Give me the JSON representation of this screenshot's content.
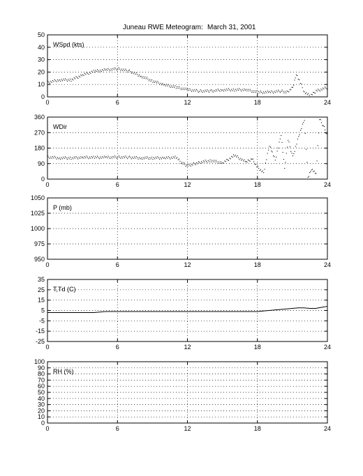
{
  "title": {
    "station": "Juneau RWE Meteogram:",
    "date": "March 31, 2001"
  },
  "chart_data": [
    {
      "type": "scatter",
      "label": "WSpd (kts)",
      "ylim": [
        0,
        50
      ],
      "yticks": [
        0,
        10,
        20,
        30,
        40,
        50
      ],
      "xlim": [
        0,
        24
      ],
      "xticks": [
        0,
        6,
        12,
        18,
        24
      ],
      "grid": true,
      "series": [
        {
          "x": [
            0,
            1,
            2,
            3,
            4,
            5,
            6,
            7,
            8,
            9,
            10,
            11,
            12,
            13,
            14,
            15,
            16,
            17,
            18,
            19,
            20,
            20.5,
            21,
            21.3,
            22,
            22.5,
            23,
            24
          ],
          "values": [
            12,
            14,
            14,
            18,
            21,
            22,
            23,
            21,
            17,
            13,
            10,
            8,
            6,
            5,
            5,
            6,
            6,
            6,
            4,
            4,
            5,
            4,
            8,
            19,
            4,
            1,
            5,
            8
          ]
        }
      ]
    },
    {
      "type": "scatter",
      "label": "WDir",
      "ylim": [
        0,
        360
      ],
      "yticks": [
        0,
        90,
        180,
        270,
        360
      ],
      "xlim": [
        0,
        24
      ],
      "xticks": [
        0,
        6,
        12,
        18,
        24
      ],
      "grid": true,
      "series": [
        {
          "x": [
            0,
            1,
            2,
            3,
            4,
            5,
            6,
            7,
            8,
            9,
            10,
            11,
            11.5,
            12,
            12.5,
            13,
            14,
            15,
            16,
            17,
            17.5,
            18,
            18.5,
            19,
            19.5,
            20,
            20.3,
            20.6,
            21,
            21.5,
            22,
            22.3,
            22.6,
            23,
            23.3,
            23.7,
            24
          ],
          "values": [
            130,
            125,
            125,
            128,
            128,
            128,
            130,
            128,
            125,
            125,
            125,
            128,
            95,
            80,
            90,
            100,
            110,
            95,
            140,
            100,
            120,
            70,
            40,
            200,
            110,
            260,
            60,
            230,
            130,
            250,
            350,
            10,
            60,
            30,
            350,
            300,
            250
          ]
        }
      ]
    },
    {
      "type": "line",
      "label": "P (mb)",
      "ylim": [
        950,
        1050
      ],
      "yticks": [
        950,
        975,
        1000,
        1025,
        1050
      ],
      "xlim": [
        0,
        24
      ],
      "xticks": [
        0,
        6,
        12,
        18,
        24
      ],
      "grid": true,
      "series": []
    },
    {
      "type": "line",
      "label": "T,Td (C)",
      "ylim": [
        -25,
        35
      ],
      "yticks": [
        -25,
        -15,
        -5,
        5,
        15,
        25,
        35
      ],
      "xlim": [
        0,
        24
      ],
      "xticks": [
        0,
        6,
        12,
        18,
        24
      ],
      "grid": true,
      "series": [
        {
          "x": [
            0,
            1,
            2,
            3,
            4,
            5,
            6,
            7,
            8,
            9,
            10,
            11,
            12,
            13,
            14,
            15,
            16,
            17,
            18,
            18.5,
            19,
            19.5,
            20,
            20.5,
            21,
            21.5,
            22,
            22.5,
            23,
            23.5,
            24
          ],
          "values": [
            3,
            3,
            3,
            3,
            3,
            4,
            4,
            4,
            4,
            4,
            4,
            4,
            4,
            4,
            4,
            4,
            4,
            4,
            4,
            4.5,
            5,
            5.5,
            6,
            6.5,
            7,
            7.5,
            7.5,
            7,
            7,
            8,
            9
          ]
        }
      ]
    },
    {
      "type": "line",
      "label": "RH (%)",
      "ylim": [
        0,
        100
      ],
      "yticks": [
        0,
        10,
        20,
        30,
        40,
        50,
        60,
        70,
        80,
        90,
        100
      ],
      "xlim": [
        0,
        24
      ],
      "xticks": [
        0,
        6,
        12,
        18,
        24
      ],
      "grid": true,
      "series": []
    }
  ]
}
